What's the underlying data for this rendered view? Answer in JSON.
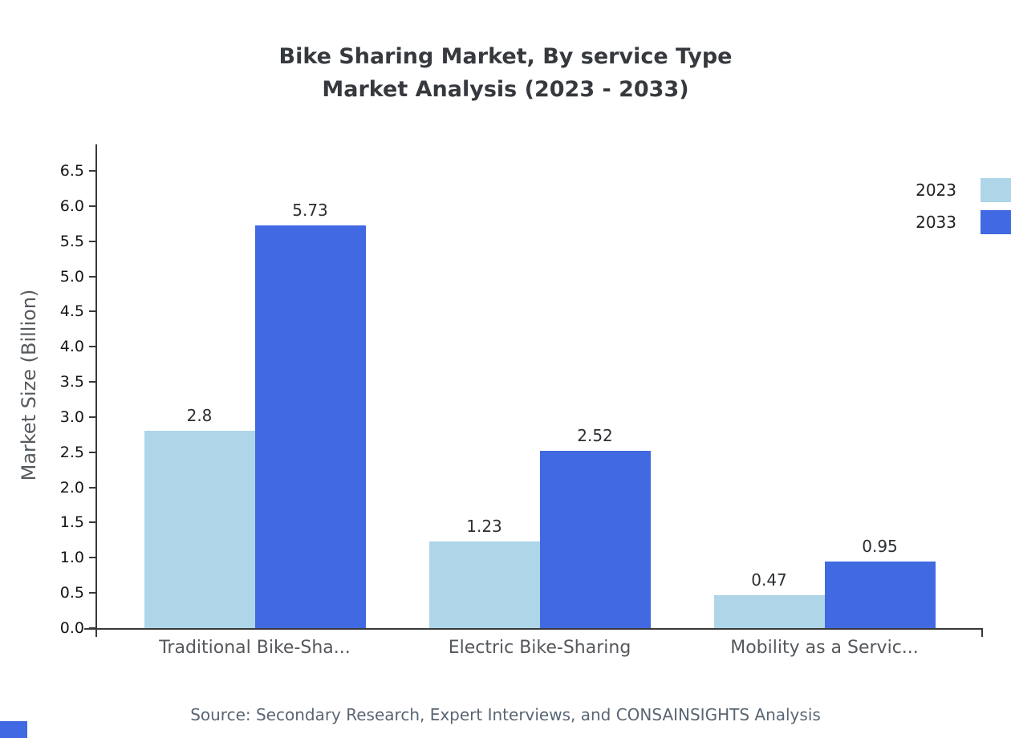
{
  "title_line1": "Bike Sharing Market, By service Type",
  "title_line2": "Market Analysis (2023 - 2033)",
  "source": "Source: Secondary Research, Expert Interviews, and CONSAINSIGHTS Analysis",
  "chart_data": {
    "type": "bar",
    "title": "Bike Sharing Market, By service Type Market Analysis (2023 - 2033)",
    "categories": [
      "Traditional Bike-Sha...",
      "Electric Bike-Sharing",
      "Mobility as a Servic..."
    ],
    "series": [
      {
        "name": "2023",
        "color": "#aed6e8",
        "values": [
          2.8,
          1.23,
          0.47
        ],
        "labels": [
          "2.8",
          "1.23",
          "0.47"
        ]
      },
      {
        "name": "2033",
        "color": "#4169e1",
        "values": [
          5.73,
          2.52,
          0.95
        ],
        "labels": [
          "5.73",
          "2.52",
          "0.95"
        ]
      }
    ],
    "xlabel": "",
    "ylabel": "Market Size (Billion)",
    "ylim": [
      0,
      6.5
    ],
    "ytick_step": 0.5,
    "yticks": [
      "0.0",
      "0.5",
      "1.0",
      "1.5",
      "2.0",
      "2.5",
      "3.0",
      "3.5",
      "4.0",
      "4.5",
      "5.0",
      "5.5",
      "6.0",
      "6.5"
    ],
    "grid": false,
    "legend_position": "top-right"
  }
}
